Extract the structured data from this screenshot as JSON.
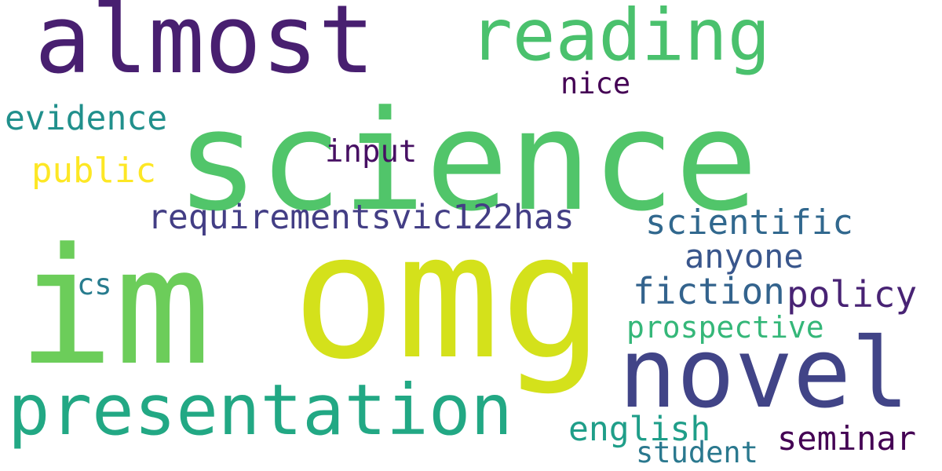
{
  "words": [
    {
      "text": "science",
      "color": "#51c56a"
    },
    {
      "text": "omg",
      "color": "#d4e11b"
    },
    {
      "text": "im",
      "color": "#6ccd5a"
    },
    {
      "text": "almost",
      "color": "#481f70"
    },
    {
      "text": "novel",
      "color": "#414487"
    },
    {
      "text": "reading",
      "color": "#4ac16d"
    },
    {
      "text": "presentation",
      "color": "#22a884"
    },
    {
      "text": "requirementsvic122has",
      "color": "#433e85"
    },
    {
      "text": "scientific",
      "color": "#31688e"
    },
    {
      "text": "evidence",
      "color": "#21908c"
    },
    {
      "text": "fiction",
      "color": "#33638d"
    },
    {
      "text": "policy",
      "color": "#482374"
    },
    {
      "text": "anyone",
      "color": "#39568c"
    },
    {
      "text": "public",
      "color": "#fde725"
    },
    {
      "text": "input",
      "color": "#471063"
    },
    {
      "text": "prospective",
      "color": "#35b779"
    },
    {
      "text": "english",
      "color": "#1f9e89"
    },
    {
      "text": "seminar",
      "color": "#440154"
    },
    {
      "text": "nice",
      "color": "#440154"
    },
    {
      "text": "student",
      "color": "#2a788e"
    },
    {
      "text": "cs",
      "color": "#287c8e"
    }
  ]
}
